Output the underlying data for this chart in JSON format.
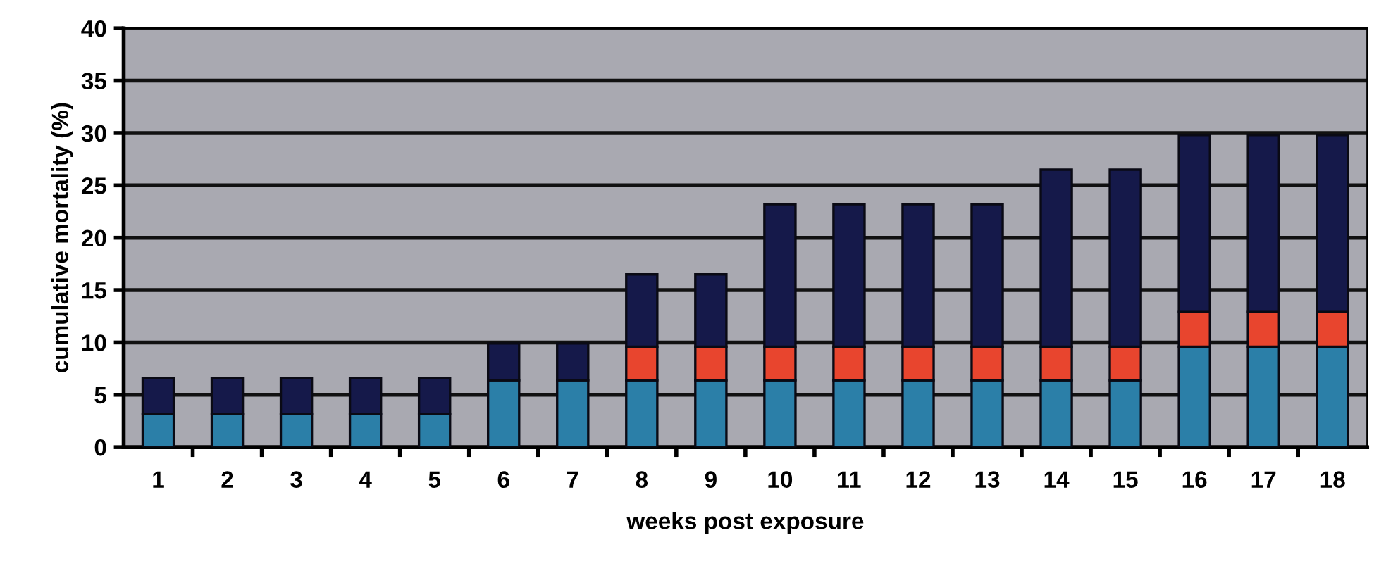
{
  "chart_data": {
    "type": "bar",
    "stacked": true,
    "xlabel": "weeks post exposure",
    "ylabel": "cumulative mortality (%)",
    "categories": [
      "1",
      "2",
      "3",
      "4",
      "5",
      "6",
      "7",
      "8",
      "9",
      "10",
      "11",
      "12",
      "13",
      "14",
      "15",
      "16",
      "17",
      "18"
    ],
    "series": [
      {
        "color": "#2b7fa8",
        "values": [
          3.2,
          3.2,
          3.2,
          3.2,
          3.2,
          6.4,
          6.4,
          6.4,
          6.4,
          6.4,
          6.4,
          6.4,
          6.4,
          6.4,
          6.4,
          9.6,
          9.6,
          9.6
        ]
      },
      {
        "color": "#e8452e",
        "values": [
          null,
          null,
          null,
          null,
          null,
          null,
          null,
          3.2,
          3.2,
          3.2,
          3.2,
          3.2,
          3.2,
          3.2,
          3.2,
          3.3,
          3.3,
          3.3
        ]
      },
      {
        "color": "#15194a",
        "values": [
          3.4,
          3.4,
          3.4,
          3.4,
          3.4,
          3.5,
          3.5,
          6.9,
          6.9,
          13.6,
          13.6,
          13.6,
          13.6,
          16.9,
          16.9,
          16.9,
          16.9,
          16.9
        ]
      }
    ],
    "ylim": [
      0,
      40
    ],
    "yticks": [
      0,
      5,
      10,
      15,
      20,
      25,
      30,
      35,
      40
    ],
    "grid": "y"
  }
}
